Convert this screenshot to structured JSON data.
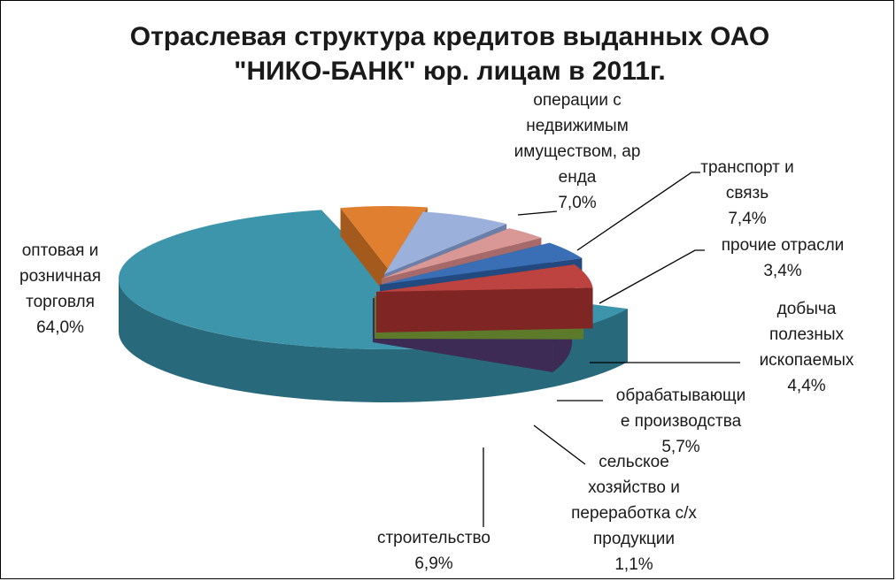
{
  "chart_data": {
    "type": "pie",
    "title": [
      "Отраслевая структура кредитов выданных ОАО",
      "\"НИКО-БАНК\" юр. лицам в 2011г."
    ],
    "slices": [
      {
        "key": "real_estate",
        "label_lines": [
          "операции с",
          "недвижимым",
          "имуществом, ар",
          "енда"
        ],
        "value": 7.0,
        "value_label": "7,0%",
        "color": "#e07f2f",
        "side": "#a45a1d"
      },
      {
        "key": "transport",
        "label_lines": [
          "транспорт и",
          "связь"
        ],
        "value": 7.4,
        "value_label": "7,4%",
        "color": "#9bb0db",
        "side": "#6b7fa8"
      },
      {
        "key": "other",
        "label_lines": [
          "прочие отрасли"
        ],
        "value": 3.4,
        "value_label": "3,4%",
        "color": "#d99796",
        "side": "#a56a69"
      },
      {
        "key": "mining",
        "label_lines": [
          "добыча",
          "полезных",
          "ископаемых"
        ],
        "value": 4.4,
        "value_label": "4,4%",
        "color": "#3a6eb5",
        "side": "#234a80"
      },
      {
        "key": "manufacturing",
        "label_lines": [
          "обрабатывающи",
          "е производства"
        ],
        "value": 5.7,
        "value_label": "5,7%",
        "color": "#bd4341",
        "side": "#7f2523"
      },
      {
        "key": "agriculture",
        "label_lines": [
          "сельское",
          "хозяйство и",
          "переработка с/х",
          "продукции"
        ],
        "value": 1.1,
        "value_label": "1,1%",
        "color": "#93b654",
        "side": "#5d7a2b"
      },
      {
        "key": "construction",
        "label_lines": [
          "строительство"
        ],
        "value": 6.9,
        "value_label": "6,9%",
        "color": "#715494",
        "side": "#3d2a55"
      },
      {
        "key": "trade",
        "label_lines": [
          "оптовая и",
          "розничная",
          "торговля"
        ],
        "value": 64.0,
        "value_label": "64,0%",
        "color": "#3d95ab",
        "side": "#286a7b"
      }
    ],
    "legend": "none",
    "style": "3d-exploded"
  }
}
